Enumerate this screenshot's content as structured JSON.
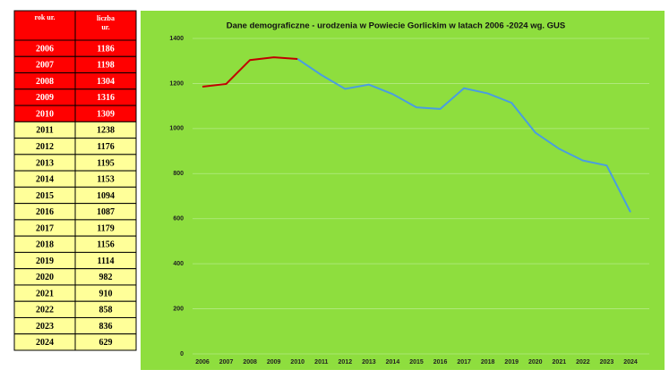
{
  "table": {
    "headers": [
      "rok ur.",
      [
        "liczba",
        "ur."
      ]
    ],
    "rows": [
      [
        "2006",
        "1186"
      ],
      [
        "2007",
        "1198"
      ],
      [
        "2008",
        "1304"
      ],
      [
        "2009",
        "1316"
      ],
      [
        "2010",
        "1309"
      ],
      [
        "2011",
        "1238"
      ],
      [
        "2012",
        "1176"
      ],
      [
        "2013",
        "1195"
      ],
      [
        "2014",
        "1153"
      ],
      [
        "2015",
        "1094"
      ],
      [
        "2016",
        "1087"
      ],
      [
        "2017",
        "1179"
      ],
      [
        "2018",
        "1156"
      ],
      [
        "2019",
        "1114"
      ],
      [
        "2020",
        "982"
      ],
      [
        "2021",
        "910"
      ],
      [
        "2022",
        "858"
      ],
      [
        "2023",
        "836"
      ],
      [
        "2024",
        "629"
      ]
    ],
    "color": "#ffff99",
    "highlight_color": "#ff0000",
    "highlight_rows": 5
  },
  "chart_data": {
    "type": "line",
    "title": "Dane demograficzne - urodzenia w Powiecie Gorlickim  w latach 2006 -2024 wg. GUS",
    "categories": [
      "2006",
      "2007",
      "2008",
      "2009",
      "2010",
      "2011",
      "2012",
      "2013",
      "2014",
      "2015",
      "2016",
      "2017",
      "2018",
      "2019",
      "2020",
      "2021",
      "2022",
      "2023",
      "2024"
    ],
    "series": [
      {
        "color": "#c00000",
        "values": [
          1186,
          1198,
          1304,
          1316,
          1309,
          null,
          null,
          null,
          null,
          null,
          null,
          null,
          null,
          null,
          null,
          null,
          null,
          null,
          null
        ]
      },
      {
        "color": "#4a9de0",
        "values": [
          null,
          null,
          null,
          null,
          1309,
          1238,
          1176,
          1195,
          1153,
          1094,
          1087,
          1179,
          1156,
          1114,
          982,
          910,
          858,
          836,
          629
        ]
      }
    ],
    "ylim": [
      0,
      1400
    ],
    "yticks": [
      0,
      200,
      400,
      600,
      800,
      1000,
      1200,
      1400
    ],
    "grid": true,
    "background": "#8ede3e"
  }
}
